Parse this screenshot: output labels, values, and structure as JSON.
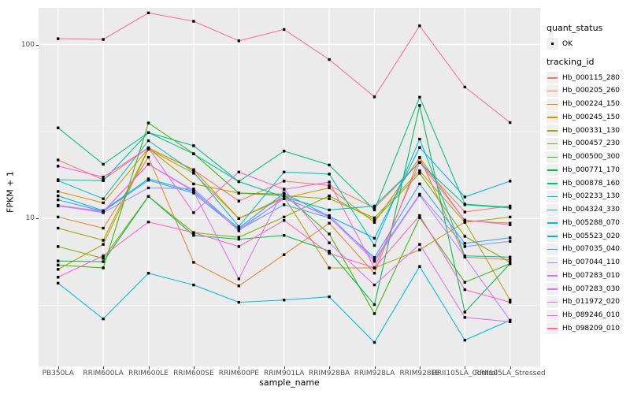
{
  "colors": {
    "page_bg": "#FFFFFF",
    "panel_bg": "#EBEBEB",
    "grid": "#FFFFFF",
    "tick_text": "#4D4D4D",
    "title_text": "#000000",
    "point": "#000000",
    "legend_key_bg": "#F0F0F0"
  },
  "legend": {
    "quant_status_title": "quant_status",
    "quant_status_items": [
      {
        "label": "OK",
        "symbol": "black-point"
      }
    ],
    "tracking_id_title": "tracking_id"
  },
  "chart_data": {
    "type": "line",
    "title": "",
    "xlabel": "sample_name",
    "ylabel": "FPKM + 1",
    "y_scale": "log10",
    "y_major_ticks": [
      100,
      10
    ],
    "y_minor_ticks": [
      31.62,
      3.162
    ],
    "ylim": [
      1.57,
      180
    ],
    "grid": true,
    "legend_position": "right",
    "x_categories": [
      "PB350LA",
      "RRIM600LA",
      "RRIM600LE",
      "RRIM600SE",
      "RRIM600PE",
      "RRIM901LA",
      "RRIM928BA",
      "RRIM928LA",
      "RRIM928LE",
      "RRII105LA_Control",
      "RRII105LA_Stressed"
    ],
    "series": [
      {
        "name": "Hb_000115_280",
        "color": "#F8766D",
        "values": [
          21.7,
          16.7,
          25.5,
          19.0,
          12.6,
          16.4,
          15.5,
          11.5,
          21.0,
          10.9,
          11.8
        ]
      },
      {
        "name": "Hb_000205_260",
        "color": "#EA8331",
        "values": [
          10.2,
          8.8,
          22.5,
          5.6,
          4.1,
          6.2,
          9.4,
          4.85,
          22.4,
          6.0,
          5.8
        ]
      },
      {
        "name": "Hb_000224_150",
        "color": "#D89000",
        "values": [
          14.3,
          12.3,
          25.3,
          19.1,
          10.0,
          13.1,
          15.0,
          9.5,
          22.4,
          9.7,
          9.4
        ]
      },
      {
        "name": "Hb_000245_150",
        "color": "#C09B00",
        "values": [
          5.1,
          7.1,
          25.0,
          18.2,
          10.0,
          13.3,
          5.2,
          5.2,
          6.6,
          9.55,
          3.4
        ]
      },
      {
        "name": "Hb_000331_130",
        "color": "#A3A500",
        "values": [
          8.8,
          7.5,
          25.3,
          15.8,
          14.0,
          13.5,
          13.0,
          10.1,
          18.8,
          9.5,
          10.2
        ]
      },
      {
        "name": "Hb_000457_230",
        "color": "#7CAE00",
        "values": [
          6.9,
          5.9,
          13.4,
          8.3,
          7.8,
          10.2,
          13.5,
          9.8,
          18.2,
          7.9,
          5.6
        ]
      },
      {
        "name": "Hb_000500_300",
        "color": "#39B600",
        "values": [
          5.4,
          5.2,
          35.4,
          23.6,
          14.0,
          13.8,
          8.15,
          2.84,
          10.1,
          4.3,
          5.5
        ]
      },
      {
        "name": "Hb_000771_170",
        "color": "#00BB4E",
        "values": [
          5.7,
          5.65,
          13.4,
          8.0,
          7.6,
          8.0,
          6.5,
          3.2,
          44.6,
          2.9,
          5.5
        ]
      },
      {
        "name": "Hb_000878_160",
        "color": "#00BF7D",
        "values": [
          33.2,
          20.5,
          31.2,
          26.2,
          16.3,
          24.4,
          20.3,
          11.2,
          49.8,
          12.1,
          11.6
        ]
      },
      {
        "name": "Hb_002233_130",
        "color": "#00C1A3",
        "values": [
          16.7,
          16.5,
          31.2,
          23.5,
          16.3,
          13.3,
          11.2,
          11.8,
          21.0,
          12.0,
          11.5
        ]
      },
      {
        "name": "Hb_004324_330",
        "color": "#00BFC4",
        "values": [
          16.5,
          13.0,
          28.0,
          18.5,
          9.0,
          18.5,
          18.0,
          7.0,
          28.6,
          6.1,
          6.0
        ]
      },
      {
        "name": "Hb_005288_070",
        "color": "#00BAE0",
        "values": [
          4.25,
          2.65,
          4.85,
          4.15,
          3.3,
          3.4,
          3.55,
          1.94,
          5.3,
          2.0,
          2.6
        ]
      },
      {
        "name": "Hb_005523_020",
        "color": "#00B0F6",
        "values": [
          13.5,
          11.1,
          16.9,
          14.3,
          8.8,
          14.0,
          10.3,
          7.7,
          25.6,
          13.3,
          16.4
        ]
      },
      {
        "name": "Hb_007035_040",
        "color": "#35A2FF",
        "values": [
          12.8,
          11.0,
          16.6,
          14.0,
          8.6,
          12.0,
          10.1,
          5.97,
          15.8,
          7.2,
          7.75
        ]
      },
      {
        "name": "Hb_007044_110",
        "color": "#9590FF",
        "values": [
          11.9,
          10.8,
          15.0,
          14.8,
          8.7,
          13.0,
          10.4,
          5.8,
          13.8,
          6.9,
          7.4
        ]
      },
      {
        "name": "Hb_007283_010",
        "color": "#C77CFF",
        "values": [
          11.8,
          10.9,
          20.5,
          14.5,
          8.5,
          13.2,
          10.2,
          5.67,
          13.6,
          6.0,
          2.6
        ]
      },
      {
        "name": "Hb_007283_030",
        "color": "#E76BF3",
        "values": [
          11.9,
          11.0,
          20.5,
          14.3,
          4.5,
          14.75,
          7.25,
          4.15,
          7.1,
          2.7,
          2.55
        ]
      },
      {
        "name": "Hb_011972_020",
        "color": "#FA62DB",
        "values": [
          20.0,
          17.3,
          25.5,
          10.8,
          18.5,
          14.7,
          16.2,
          5.2,
          21.0,
          9.8,
          9.2
        ]
      },
      {
        "name": "Hb_089246_010",
        "color": "#FF61C9",
        "values": [
          4.6,
          6.1,
          9.55,
          8.3,
          6.9,
          9.75,
          6.3,
          5.2,
          10.4,
          3.9,
          3.3
        ]
      },
      {
        "name": "Hb_098209_010",
        "color": "#FF6A98",
        "values": [
          108,
          107,
          152,
          136,
          105,
          122,
          82,
          50,
          128,
          57,
          35.6
        ]
      }
    ]
  }
}
